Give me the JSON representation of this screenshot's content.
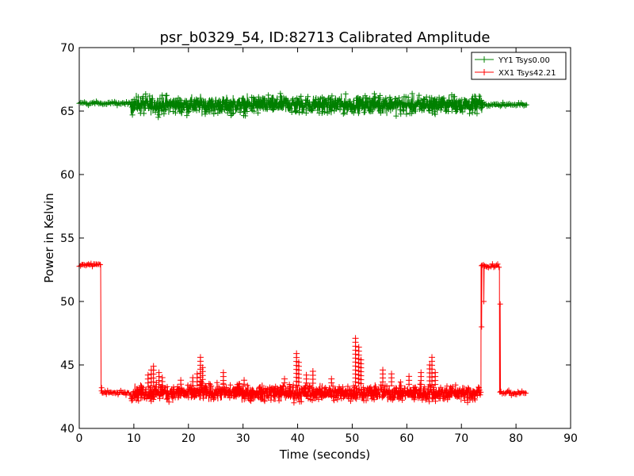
{
  "chart_data": {
    "type": "line",
    "title": "psr_b0329_54, ID:82713 Calibrated Amplitude",
    "xlabel": "Time (seconds)",
    "ylabel": "Power in Kelvin",
    "xlim": [
      0,
      90
    ],
    "ylim": [
      40,
      70
    ],
    "xticks": [
      0,
      10,
      20,
      30,
      40,
      50,
      60,
      70,
      80,
      90
    ],
    "yticks": [
      40,
      45,
      50,
      55,
      60,
      65,
      70
    ],
    "grid": false,
    "legend_position": "top-right",
    "series": [
      {
        "name": "YY1 Tsys0.00",
        "color": "#008000",
        "marker": "+",
        "segments": [
          {
            "x_start": 0,
            "x_end": 9.5,
            "mean": 65.6,
            "spread": 0.3
          },
          {
            "x_start": 9.5,
            "x_end": 74,
            "mean": 65.5,
            "spread": 1.4
          },
          {
            "x_start": 74,
            "x_end": 82,
            "mean": 65.5,
            "spread": 0.3
          }
        ]
      },
      {
        "name": "XX1 Tsys42.21",
        "color": "#ff0000",
        "marker": "+",
        "segments": [
          {
            "x_start": 0,
            "x_end": 4,
            "mean": 52.9,
            "spread": 0.3
          },
          {
            "x_start": 4,
            "x_end": 9.5,
            "mean": 42.8,
            "spread": 0.4
          },
          {
            "x_start": 9.5,
            "x_end": 73.6,
            "mean": 42.8,
            "spread": 1.3
          },
          {
            "x_start": 73.6,
            "x_end": 77,
            "mean": 52.8,
            "spread": 0.3
          },
          {
            "x_start": 77,
            "x_end": 82,
            "mean": 42.8,
            "spread": 0.3
          }
        ],
        "transitions": [
          {
            "x": 4.1,
            "y": 43.2
          },
          {
            "x": 73.7,
            "y": 48.0
          },
          {
            "x": 74.1,
            "y": 50.0
          },
          {
            "x": 77.1,
            "y": 49.8
          }
        ],
        "spikes": [
          {
            "x": 12.6,
            "y": 44.2
          },
          {
            "x": 13.2,
            "y": 44.6
          },
          {
            "x": 13.6,
            "y": 44.9
          },
          {
            "x": 14.6,
            "y": 44.4
          },
          {
            "x": 15.2,
            "y": 44.0
          },
          {
            "x": 18.6,
            "y": 43.8
          },
          {
            "x": 20.8,
            "y": 44.0
          },
          {
            "x": 21.6,
            "y": 44.3
          },
          {
            "x": 22.2,
            "y": 45.6
          },
          {
            "x": 22.6,
            "y": 44.8
          },
          {
            "x": 26.4,
            "y": 44.4
          },
          {
            "x": 30.2,
            "y": 43.8
          },
          {
            "x": 37.6,
            "y": 43.9
          },
          {
            "x": 39.8,
            "y": 45.9
          },
          {
            "x": 40.2,
            "y": 45.2
          },
          {
            "x": 41.6,
            "y": 44.2
          },
          {
            "x": 42.8,
            "y": 44.5
          },
          {
            "x": 46.2,
            "y": 43.9
          },
          {
            "x": 50.6,
            "y": 47.1
          },
          {
            "x": 51.2,
            "y": 46.4
          },
          {
            "x": 51.6,
            "y": 45.4
          },
          {
            "x": 55.6,
            "y": 44.6
          },
          {
            "x": 57.2,
            "y": 44.3
          },
          {
            "x": 60.4,
            "y": 44.1
          },
          {
            "x": 62.6,
            "y": 44.4
          },
          {
            "x": 64.2,
            "y": 45.0
          },
          {
            "x": 64.6,
            "y": 45.6
          },
          {
            "x": 65.2,
            "y": 44.4
          }
        ]
      }
    ]
  }
}
